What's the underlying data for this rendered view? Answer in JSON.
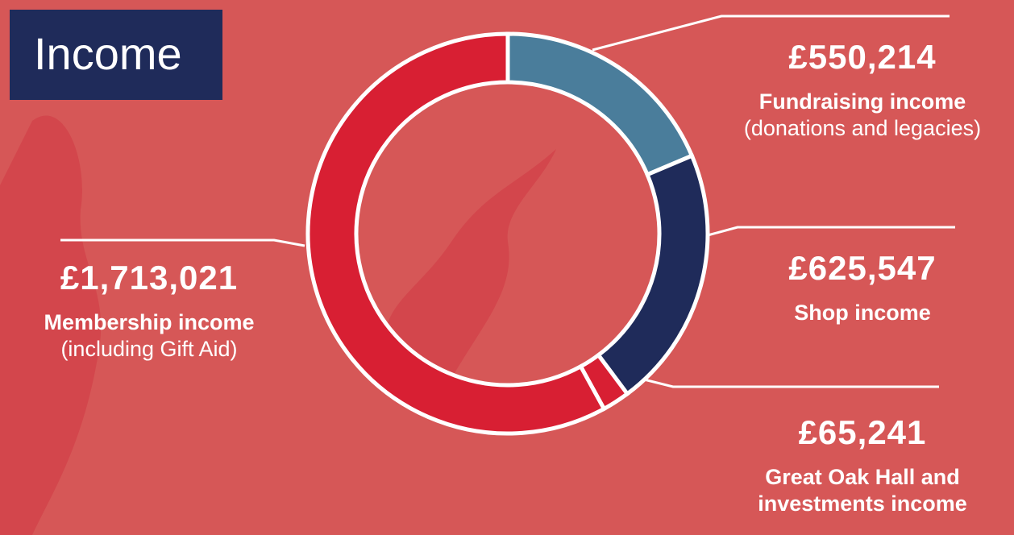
{
  "chart_data": {
    "type": "donut",
    "title": "Income",
    "categories": [
      "Fundraising income",
      "Shop income",
      "Great Oak Hall and investments income",
      "Membership income"
    ],
    "values": [
      550214,
      625547,
      65241,
      1713021
    ],
    "value_labels": [
      "£550,214",
      "£625,547",
      "£65,241",
      "£1,713,021"
    ],
    "annotations": [
      "(donations and legacies)",
      "(including Gift Aid)"
    ],
    "colors": [
      "#4a7d9b",
      "#1f2b5a",
      "#d81f33",
      "#d81f33"
    ]
  }
}
